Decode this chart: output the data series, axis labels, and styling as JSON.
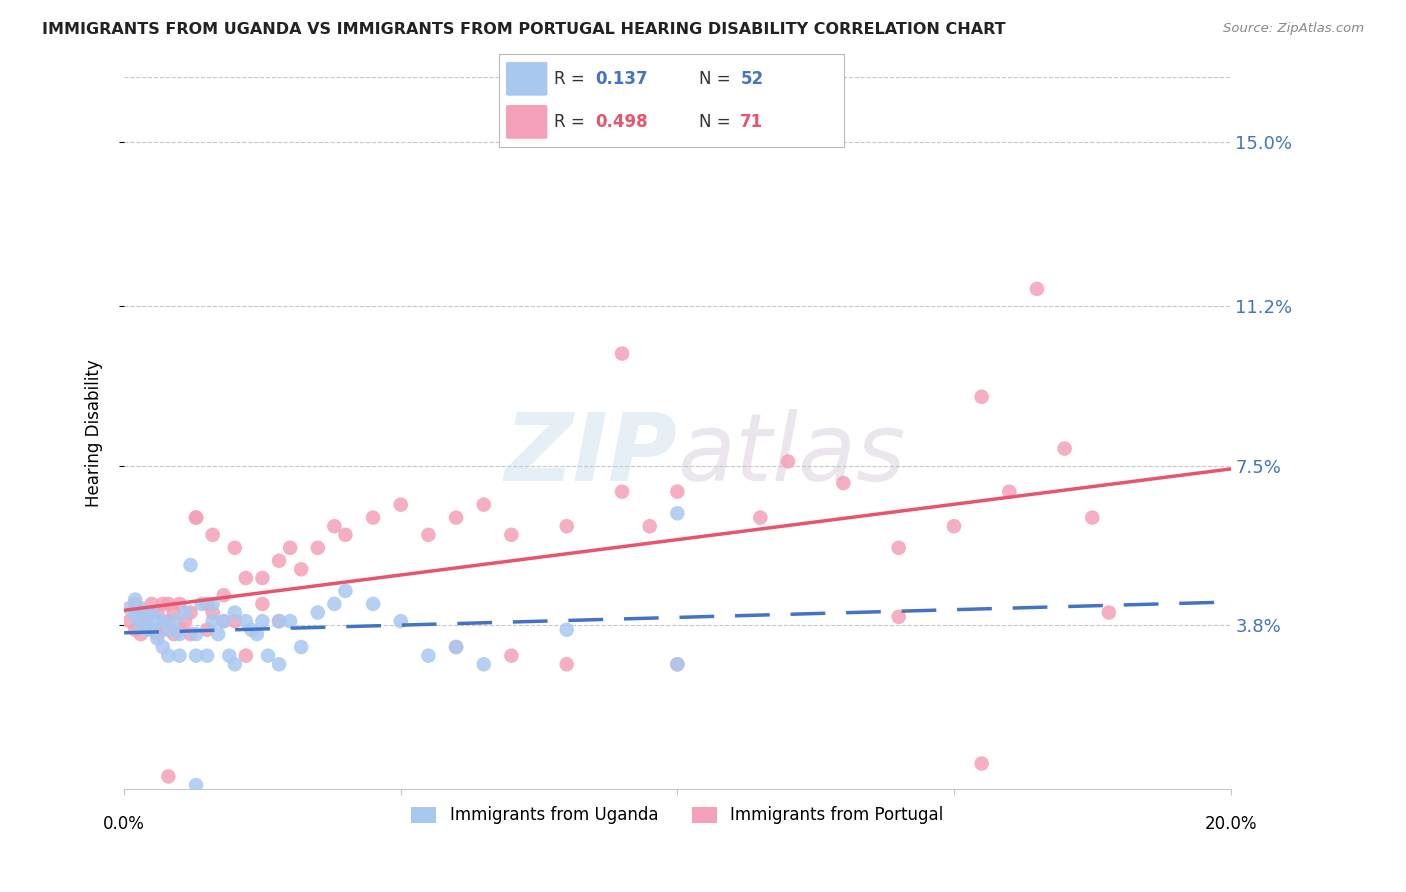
{
  "title": "IMMIGRANTS FROM UGANDA VS IMMIGRANTS FROM PORTUGAL HEARING DISABILITY CORRELATION CHART",
  "source": "Source: ZipAtlas.com",
  "ylabel": "Hearing Disability",
  "ytick_labels": [
    "3.8%",
    "7.5%",
    "11.2%",
    "15.0%"
  ],
  "ytick_values": [
    0.038,
    0.075,
    0.112,
    0.15
  ],
  "xlim": [
    0.0,
    0.2
  ],
  "ylim": [
    0.0,
    0.165
  ],
  "uganda_color": "#a8c8f0",
  "portugal_color": "#f4a0b8",
  "trendline_uganda_color": "#4472c4",
  "trendline_portugal_color": "#e8556a",
  "watermark": "ZIPatlas",
  "legend_R_uganda": "0.137",
  "legend_N_uganda": "52",
  "legend_R_portugal": "0.498",
  "legend_N_portugal": "71",
  "legend_label_uganda": "Immigrants from Uganda",
  "legend_label_portugal": "Immigrants from Portugal",
  "uganda_points": [
    [
      0.001,
      0.042
    ],
    [
      0.002,
      0.044
    ],
    [
      0.002,
      0.04
    ],
    [
      0.003,
      0.038
    ],
    [
      0.003,
      0.042
    ],
    [
      0.004,
      0.04
    ],
    [
      0.004,
      0.037
    ],
    [
      0.005,
      0.041
    ],
    [
      0.005,
      0.037
    ],
    [
      0.006,
      0.039
    ],
    [
      0.006,
      0.035
    ],
    [
      0.007,
      0.039
    ],
    [
      0.007,
      0.033
    ],
    [
      0.008,
      0.037
    ],
    [
      0.008,
      0.031
    ],
    [
      0.009,
      0.039
    ],
    [
      0.01,
      0.036
    ],
    [
      0.01,
      0.031
    ],
    [
      0.011,
      0.041
    ],
    [
      0.012,
      0.052
    ],
    [
      0.013,
      0.036
    ],
    [
      0.013,
      0.031
    ],
    [
      0.014,
      0.043
    ],
    [
      0.015,
      0.031
    ],
    [
      0.016,
      0.043
    ],
    [
      0.016,
      0.039
    ],
    [
      0.017,
      0.036
    ],
    [
      0.018,
      0.039
    ],
    [
      0.019,
      0.031
    ],
    [
      0.02,
      0.041
    ],
    [
      0.02,
      0.029
    ],
    [
      0.022,
      0.039
    ],
    [
      0.023,
      0.037
    ],
    [
      0.024,
      0.036
    ],
    [
      0.025,
      0.039
    ],
    [
      0.026,
      0.031
    ],
    [
      0.028,
      0.039
    ],
    [
      0.028,
      0.029
    ],
    [
      0.03,
      0.039
    ],
    [
      0.032,
      0.033
    ],
    [
      0.035,
      0.041
    ],
    [
      0.038,
      0.043
    ],
    [
      0.04,
      0.046
    ],
    [
      0.045,
      0.043
    ],
    [
      0.05,
      0.039
    ],
    [
      0.055,
      0.031
    ],
    [
      0.06,
      0.033
    ],
    [
      0.065,
      0.029
    ],
    [
      0.08,
      0.037
    ],
    [
      0.1,
      0.029
    ],
    [
      0.013,
      0.001
    ],
    [
      0.1,
      0.064
    ]
  ],
  "portugal_points": [
    [
      0.001,
      0.039
    ],
    [
      0.002,
      0.043
    ],
    [
      0.002,
      0.037
    ],
    [
      0.003,
      0.041
    ],
    [
      0.003,
      0.036
    ],
    [
      0.004,
      0.039
    ],
    [
      0.005,
      0.043
    ],
    [
      0.005,
      0.037
    ],
    [
      0.006,
      0.041
    ],
    [
      0.006,
      0.036
    ],
    [
      0.007,
      0.043
    ],
    [
      0.007,
      0.037
    ],
    [
      0.008,
      0.043
    ],
    [
      0.008,
      0.039
    ],
    [
      0.009,
      0.041
    ],
    [
      0.009,
      0.036
    ],
    [
      0.01,
      0.043
    ],
    [
      0.01,
      0.037
    ],
    [
      0.011,
      0.039
    ],
    [
      0.012,
      0.041
    ],
    [
      0.012,
      0.036
    ],
    [
      0.013,
      0.063
    ],
    [
      0.013,
      0.063
    ],
    [
      0.015,
      0.043
    ],
    [
      0.015,
      0.037
    ],
    [
      0.016,
      0.059
    ],
    [
      0.016,
      0.041
    ],
    [
      0.018,
      0.045
    ],
    [
      0.018,
      0.039
    ],
    [
      0.02,
      0.056
    ],
    [
      0.02,
      0.039
    ],
    [
      0.022,
      0.049
    ],
    [
      0.022,
      0.031
    ],
    [
      0.025,
      0.049
    ],
    [
      0.025,
      0.043
    ],
    [
      0.028,
      0.053
    ],
    [
      0.028,
      0.039
    ],
    [
      0.03,
      0.056
    ],
    [
      0.032,
      0.051
    ],
    [
      0.035,
      0.056
    ],
    [
      0.038,
      0.061
    ],
    [
      0.04,
      0.059
    ],
    [
      0.045,
      0.063
    ],
    [
      0.05,
      0.066
    ],
    [
      0.055,
      0.059
    ],
    [
      0.06,
      0.063
    ],
    [
      0.065,
      0.066
    ],
    [
      0.07,
      0.059
    ],
    [
      0.08,
      0.061
    ],
    [
      0.09,
      0.069
    ],
    [
      0.095,
      0.061
    ],
    [
      0.1,
      0.069
    ],
    [
      0.115,
      0.063
    ],
    [
      0.12,
      0.076
    ],
    [
      0.13,
      0.071
    ],
    [
      0.14,
      0.056
    ],
    [
      0.15,
      0.061
    ],
    [
      0.155,
      0.091
    ],
    [
      0.16,
      0.069
    ],
    [
      0.17,
      0.079
    ],
    [
      0.175,
      0.063
    ],
    [
      0.008,
      0.003
    ],
    [
      0.06,
      0.033
    ],
    [
      0.07,
      0.031
    ],
    [
      0.08,
      0.029
    ],
    [
      0.09,
      0.101
    ],
    [
      0.165,
      0.116
    ],
    [
      0.178,
      0.041
    ],
    [
      0.14,
      0.04
    ],
    [
      0.155,
      0.006
    ],
    [
      0.1,
      0.029
    ]
  ]
}
